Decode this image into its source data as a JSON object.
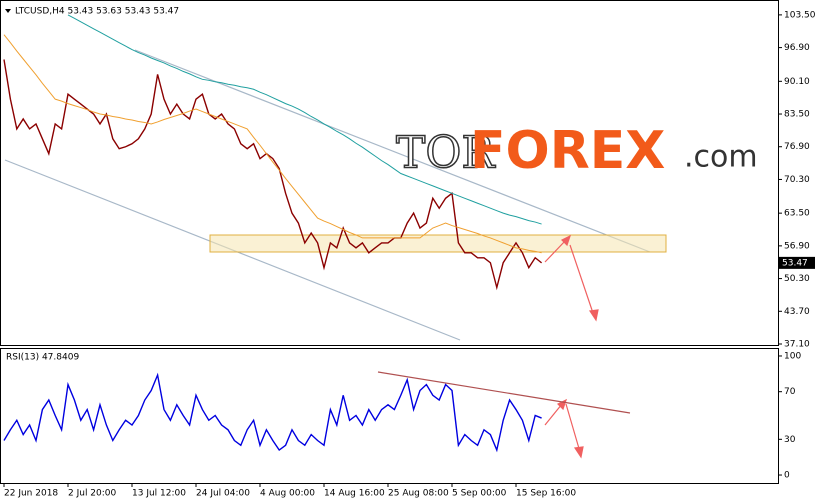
{
  "chart_data": [
    {
      "type": "line",
      "title": "LTCUSD,H4  53.43 53.63 53.43 53.47",
      "annotations": [
        "TOR",
        "FOREX",
        ".com"
      ],
      "categories": [
        "22 Jun 2018",
        null,
        null,
        null,
        null,
        null,
        null,
        null,
        null,
        null,
        "2 Jul 20:00",
        null,
        null,
        null,
        null,
        null,
        null,
        null,
        null,
        null,
        "13 Jul 12:00",
        null,
        null,
        null,
        null,
        null,
        null,
        null,
        null,
        null,
        "24 Jul 04:00",
        null,
        null,
        null,
        null,
        null,
        null,
        null,
        null,
        null,
        "4 Aug 00:00",
        null,
        null,
        null,
        null,
        null,
        null,
        null,
        null,
        null,
        "14 Aug 16:00",
        null,
        null,
        null,
        null,
        null,
        null,
        null,
        null,
        null,
        "25 Aug 08:00",
        null,
        null,
        null,
        null,
        null,
        null,
        null,
        null,
        null,
        "5 Sep 00:00",
        null,
        null,
        null,
        null,
        null,
        null,
        null,
        null,
        null,
        "15 Sep 16:00",
        null,
        null,
        null,
        null
      ],
      "series": [
        {
          "color": "#8b0000",
          "values": [
            94.5,
            86.5,
            80.5,
            82.5,
            80.5,
            81.5,
            78.5,
            75.5,
            81.5,
            80.5,
            87.5,
            86.5,
            85.5,
            84.5,
            83.5,
            81.5,
            83.5,
            78.5,
            76.5,
            76.9,
            77.5,
            78.5,
            80.5,
            83.5,
            91.5,
            86.5,
            83.5,
            85.5,
            83.5,
            82.5,
            86.5,
            87.5,
            83.5,
            82.5,
            83.5,
            81.5,
            80.5,
            77.5,
            76.5,
            77.5,
            74.5,
            75.5,
            74.5,
            72.5,
            67.5,
            63.5,
            61.5,
            57.5,
            59.5,
            57.5,
            52.5,
            57.5,
            56.5,
            60.5,
            57.5,
            56.5,
            57.5,
            55.5,
            56.5,
            57.5,
            57.5,
            58.5,
            58.5,
            61.5,
            63.5,
            60.5,
            61.5,
            66.5,
            64.5,
            66.5,
            67.5,
            57.5,
            55.5,
            55.5,
            54.5,
            54.5,
            53.5,
            48.5,
            53.5,
            55.5,
            57.5,
            55.5,
            52.5,
            54.5,
            53.47
          ]
        },
        {
          "color": "#f0a030",
          "values": [
            99.5,
            97.9,
            96.2,
            94.6,
            93,
            91.4,
            89.7,
            88.1,
            86.5,
            86.1,
            85.6,
            85.2,
            84.8,
            84.4,
            83.9,
            83.5,
            83.3,
            83,
            82.8,
            82.5,
            82.3,
            82,
            81.8,
            81.5,
            81.9,
            82.4,
            82.8,
            83.2,
            83.6,
            84.1,
            84.5,
            84,
            83.5,
            83,
            82.5,
            82,
            81.5,
            81,
            80.5,
            78.8,
            77.2,
            75.5,
            73.8,
            72.2,
            70.5,
            68.9,
            67.3,
            65.7,
            64.1,
            62.5,
            61.9,
            61.4,
            60.8,
            60.2,
            59.6,
            59.1,
            58.5,
            58.5,
            58.5,
            58.5,
            58.5,
            58.5,
            58.5,
            58.5,
            58.5,
            58.5,
            59.5,
            60.5,
            61,
            61.5,
            61,
            60.6,
            60.2,
            59.8,
            59.4,
            58.9,
            58.5,
            58,
            57.5,
            57,
            56.5,
            56.3,
            56,
            55.8,
            55.5
          ]
        },
        {
          "color": "#20a0a0",
          "values": [
            null,
            null,
            null,
            null,
            null,
            null,
            null,
            null,
            null,
            null,
            103.5,
            102.8,
            102.1,
            101.4,
            100.7,
            100,
            99.3,
            98.6,
            97.9,
            97.2,
            96.5,
            95.9,
            95.4,
            94.8,
            94.3,
            93.8,
            93.2,
            92.7,
            92.1,
            91.6,
            91,
            90.5,
            90.3,
            90,
            89.8,
            89.5,
            89.3,
            89,
            88.8,
            88.5,
            87.9,
            87.4,
            86.8,
            86.2,
            85.6,
            85.1,
            84.5,
            83.8,
            83,
            82.3,
            81.5,
            80.8,
            80,
            79.3,
            78.5,
            77.6,
            76.8,
            75.9,
            75,
            74.1,
            73.3,
            72.4,
            71.5,
            71,
            70.5,
            70,
            69.5,
            69,
            68.5,
            68,
            67.5,
            67,
            66.5,
            66,
            65.5,
            65,
            64.5,
            64,
            63.5,
            63.1,
            62.8,
            62.4,
            62,
            61.7,
            61.3
          ]
        }
      ],
      "last_value": 53.47,
      "ylim": [
        36.9,
        106.1
      ],
      "yticks": [
        {
          "value": 103.5,
          "label": "103.50"
        },
        {
          "value": 96.9,
          "label": "96.90"
        },
        {
          "value": 90.1,
          "label": "90.10"
        },
        {
          "value": 83.5,
          "label": "83.50"
        },
        {
          "value": 76.9,
          "label": "76.90"
        },
        {
          "value": 70.3,
          "label": "70.30"
        },
        {
          "value": 63.5,
          "label": "63.50"
        },
        {
          "value": 56.9,
          "label": "56.90"
        },
        {
          "value": 50.3,
          "label": "50.30"
        },
        {
          "value": 43.7,
          "label": "43.70"
        },
        {
          "value": 37.1,
          "label": "37.10"
        }
      ]
    },
    {
      "type": "line",
      "title": "RSI(13) 47.8409",
      "series": [
        {
          "color": "#0000e0",
          "values": [
            29,
            38,
            46,
            34,
            42,
            29,
            55,
            63,
            50,
            38,
            76,
            63,
            46,
            55,
            38,
            59,
            42,
            29,
            38,
            46,
            42,
            50,
            63,
            71,
            84,
            55,
            46,
            59,
            50,
            42,
            67,
            55,
            46,
            50,
            42,
            38,
            29,
            25,
            38,
            46,
            25,
            38,
            29,
            21,
            25,
            38,
            29,
            25,
            34,
            29,
            25,
            55,
            42,
            67,
            46,
            50,
            42,
            55,
            46,
            55,
            59,
            55,
            67,
            80,
            55,
            71,
            76,
            67,
            63,
            76,
            71,
            25,
            34,
            29,
            25,
            38,
            34,
            21,
            46,
            63,
            55,
            46,
            29,
            50,
            47.84
          ]
        }
      ],
      "ylim": [
        -6.7,
        106.7
      ],
      "yticks": [
        100,
        70,
        30,
        0
      ]
    }
  ]
}
